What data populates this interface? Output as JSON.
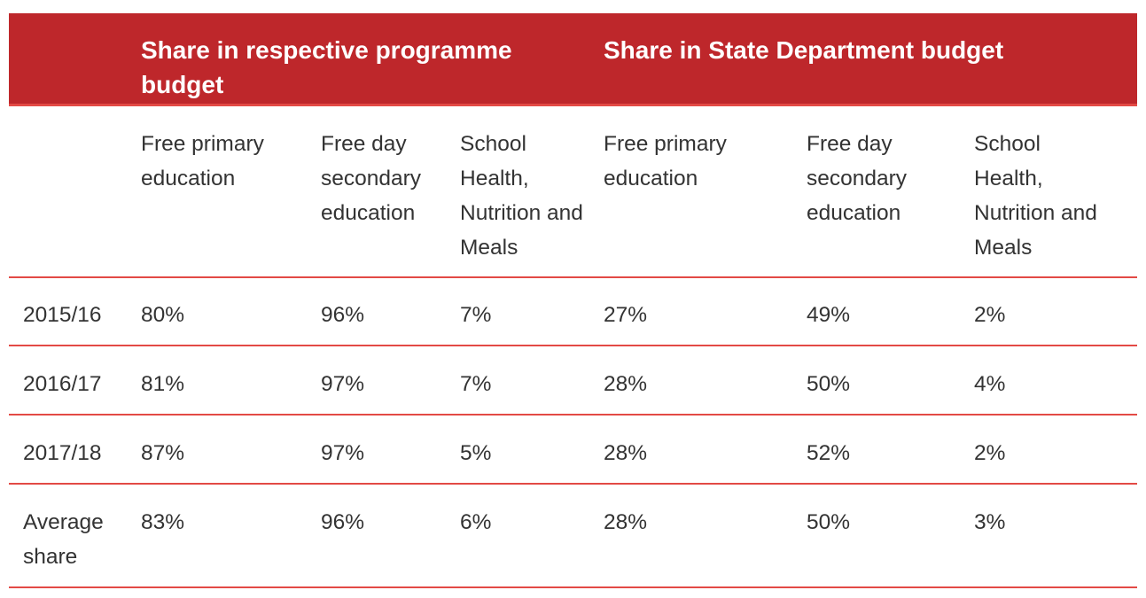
{
  "header": {
    "group1": "Share in respective programme budget",
    "group2": "Share in State Department budget"
  },
  "subheaders": [
    "Free primary education",
    "Free day secondary education",
    "School Health, Nutrition and Meals",
    "Free primary education",
    "Free day secondary education",
    "School Health, Nutrition and Meals"
  ],
  "rows": [
    {
      "label": "2015/16",
      "values": [
        "80%",
        "96%",
        "7%",
        "27%",
        "49%",
        "2%"
      ]
    },
    {
      "label": "2016/17",
      "values": [
        "81%",
        "97%",
        "7%",
        "28%",
        "50%",
        "4%"
      ]
    },
    {
      "label": "2017/18",
      "values": [
        "87%",
        "97%",
        "5%",
        "28%",
        "52%",
        "2%"
      ]
    },
    {
      "label": "Average share",
      "values": [
        "83%",
        "96%",
        "6%",
        "28%",
        "50%",
        "3%"
      ]
    }
  ],
  "colors": {
    "header_bg": "#be272b",
    "rule": "#e34a45",
    "text": "#333333",
    "header_text": "#ffffff"
  }
}
